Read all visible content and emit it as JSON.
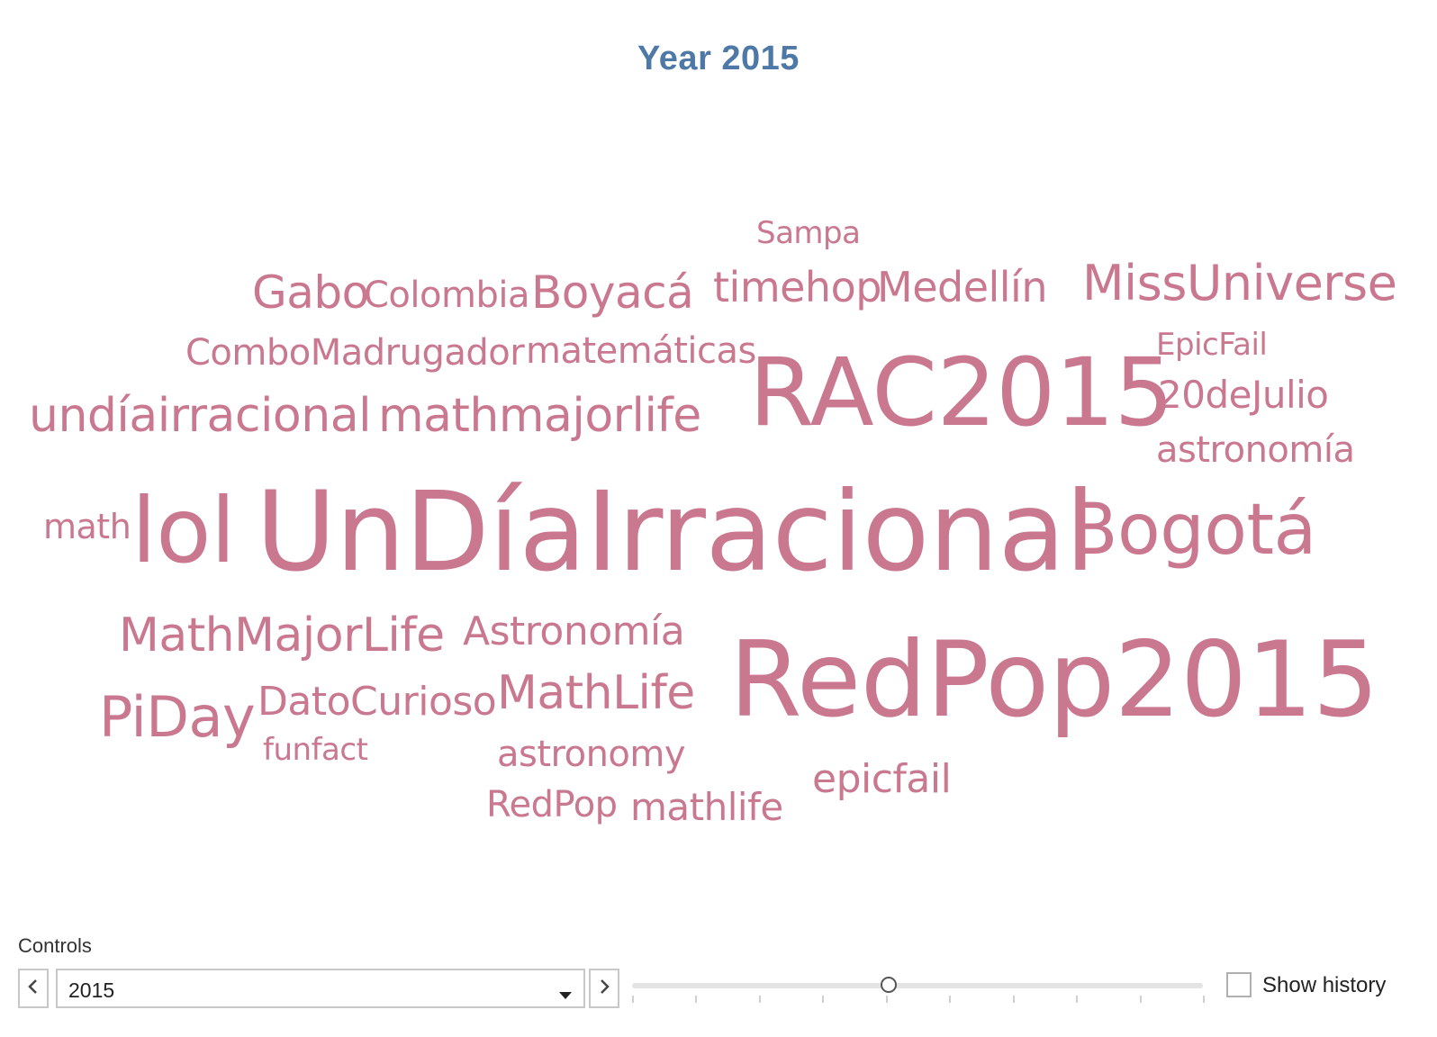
{
  "title": "Year 2015",
  "colors": {
    "title": "#4e79a7",
    "words": "#c9788f"
  },
  "words": [
    {
      "text": "Sampa",
      "size": 34
    },
    {
      "text": "Gabo",
      "size": 50
    },
    {
      "text": "Colombia",
      "size": 40
    },
    {
      "text": "Boyacá",
      "size": 50
    },
    {
      "text": "timehop",
      "size": 46
    },
    {
      "text": "Medellín",
      "size": 46
    },
    {
      "text": "MissUniverse",
      "size": 54
    },
    {
      "text": "ComboMadrugador",
      "size": 40
    },
    {
      "text": "matemáticas",
      "size": 40
    },
    {
      "text": "RAC2015",
      "size": 104
    },
    {
      "text": "EpicFail",
      "size": 34
    },
    {
      "text": "undíairracional",
      "size": 52
    },
    {
      "text": "mathmajorlife",
      "size": 52
    },
    {
      "text": "20deJulio",
      "size": 42
    },
    {
      "text": "astronomía",
      "size": 40
    },
    {
      "text": "math",
      "size": 38
    },
    {
      "text": "lol",
      "size": 100
    },
    {
      "text": "UnDíaIrracional",
      "size": 122
    },
    {
      "text": "Bogotá",
      "size": 78
    },
    {
      "text": "MathMajorLife",
      "size": 52
    },
    {
      "text": "Astronomía",
      "size": 44
    },
    {
      "text": "RedPop2015",
      "size": 116
    },
    {
      "text": "PiDay",
      "size": 62
    },
    {
      "text": "DatoCurioso",
      "size": 44
    },
    {
      "text": "MathLife",
      "size": 52
    },
    {
      "text": "funfact",
      "size": 34
    },
    {
      "text": "astronomy",
      "size": 40
    },
    {
      "text": "epicfail",
      "size": 44
    },
    {
      "text": "RedPop",
      "size": 40
    },
    {
      "text": "mathlife",
      "size": 42
    }
  ],
  "controls": {
    "label": "Controls",
    "selected_year": "2015",
    "prev_icon": "chevron-left-icon",
    "next_icon": "chevron-right-icon",
    "dropdown_icon": "caret-down-icon",
    "slider_position": 0.45,
    "show_history_label": "Show history",
    "show_history_checked": false
  }
}
